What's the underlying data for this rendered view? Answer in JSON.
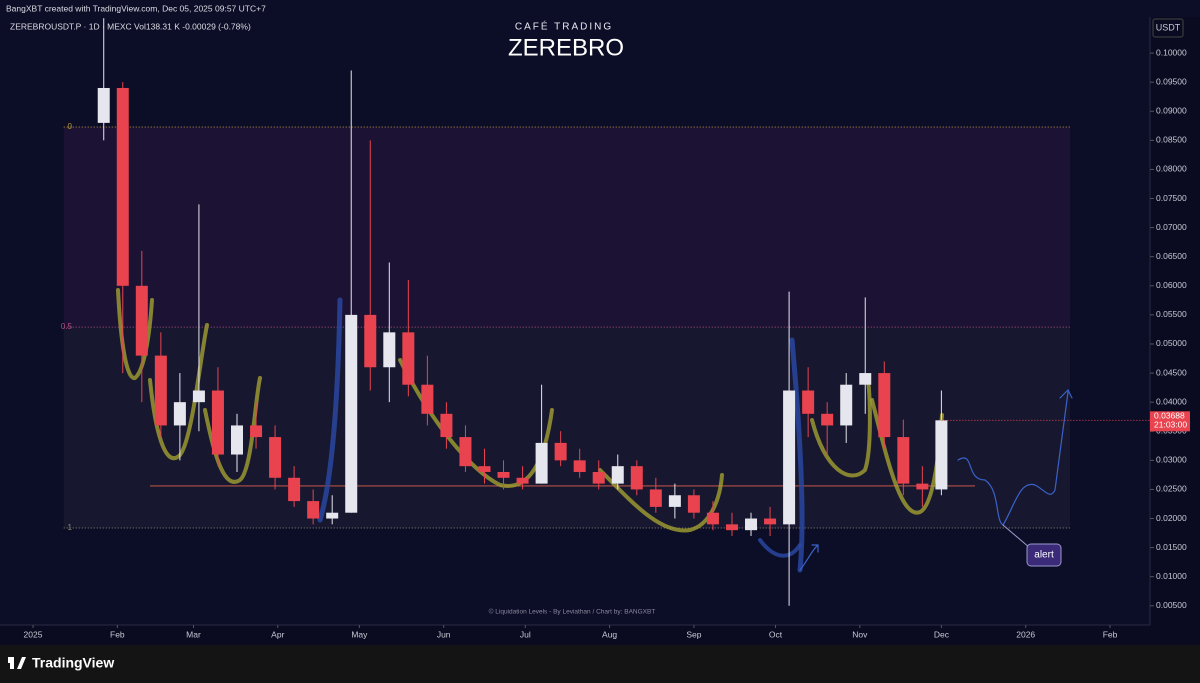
{
  "header": "BangXBT created with TradingView.com, Dec 05, 2025 09:57 UTC+7",
  "brand": "TradingView",
  "chart_data": {
    "type": "candlestick",
    "symbol_line": "ZEREBROUSDT.P · 1D · MEXC  Vol138.31 K  -0.00029 (-0.78%)",
    "subtitle": "CAFÉ TRADING",
    "title": "ZEREBRO",
    "currency": "USDT",
    "footer": "© Liquidation Levels - By Leviathan / Chart by: BANGXBT",
    "annotation": "alert",
    "up_color": "#e6e6ee",
    "down_color": "#e8434e",
    "x": [
      26,
      33,
      40,
      47,
      54,
      61,
      68,
      75,
      82,
      89,
      96,
      103,
      110,
      117,
      124,
      131,
      138,
      145,
      152,
      159,
      166,
      173,
      180,
      187,
      194,
      201,
      208,
      215,
      222,
      229,
      236,
      243,
      250,
      257,
      264,
      271,
      278,
      285,
      292,
      299,
      306,
      313,
      320,
      327,
      334
    ],
    "open": [
      0.088,
      0.094,
      0.06,
      0.048,
      0.036,
      0.04,
      0.042,
      0.031,
      0.036,
      0.034,
      0.027,
      0.023,
      0.02,
      0.021,
      0.055,
      0.046,
      0.052,
      0.043,
      0.038,
      0.034,
      0.029,
      0.028,
      0.027,
      0.026,
      0.033,
      0.03,
      0.028,
      0.026,
      0.029,
      0.025,
      0.022,
      0.024,
      0.021,
      0.019,
      0.018,
      0.02,
      0.019,
      0.042,
      0.038,
      0.036,
      0.043,
      0.045,
      0.034,
      0.026,
      0.025
    ],
    "high": [
      0.106,
      0.095,
      0.066,
      0.052,
      0.045,
      0.074,
      0.046,
      0.038,
      0.04,
      0.036,
      0.029,
      0.025,
      0.024,
      0.097,
      0.085,
      0.064,
      0.061,
      0.048,
      0.04,
      0.036,
      0.032,
      0.03,
      0.029,
      0.043,
      0.035,
      0.032,
      0.03,
      0.031,
      0.03,
      0.027,
      0.026,
      0.025,
      0.023,
      0.021,
      0.021,
      0.022,
      0.059,
      0.046,
      0.04,
      0.045,
      0.058,
      0.047,
      0.037,
      0.029,
      0.042
    ],
    "low": [
      0.085,
      0.045,
      0.04,
      0.034,
      0.03,
      0.035,
      0.029,
      0.028,
      0.032,
      0.025,
      0.022,
      0.019,
      0.019,
      0.021,
      0.042,
      0.04,
      0.041,
      0.036,
      0.032,
      0.028,
      0.026,
      0.025,
      0.025,
      0.026,
      0.029,
      0.027,
      0.025,
      0.025,
      0.024,
      0.021,
      0.02,
      0.02,
      0.018,
      0.017,
      0.017,
      0.017,
      0.005,
      0.034,
      0.031,
      0.033,
      0.038,
      0.032,
      0.024,
      0.022,
      0.024
    ],
    "close": [
      0.094,
      0.06,
      0.048,
      0.036,
      0.04,
      0.042,
      0.031,
      0.036,
      0.034,
      0.027,
      0.023,
      0.02,
      0.021,
      0.055,
      0.046,
      0.052,
      0.043,
      0.038,
      0.034,
      0.029,
      0.028,
      0.027,
      0.026,
      0.033,
      0.03,
      0.028,
      0.026,
      0.029,
      0.025,
      0.022,
      0.024,
      0.021,
      0.019,
      0.018,
      0.02,
      0.019,
      0.042,
      0.038,
      0.036,
      0.043,
      0.045,
      0.034,
      0.026,
      0.025,
      0.03688
    ],
    "last_price": 0.03688,
    "countdown": "21:03:00",
    "levels": [
      {
        "label": "0",
        "price": 0.0873
      },
      {
        "label": "0.5",
        "price": 0.0529
      },
      {
        "label": "1",
        "price": 0.01838
      }
    ],
    "hline": {
      "price": 0.0256,
      "color": "#e0604a"
    },
    "xlim": [
      -9.2,
      410.7
    ],
    "xticks": [
      {
        "value": 0,
        "label": "2025"
      },
      {
        "value": 31,
        "label": "Feb"
      },
      {
        "value": 59,
        "label": "Mar"
      },
      {
        "value": 90,
        "label": "Apr"
      },
      {
        "value": 120,
        "label": "May"
      },
      {
        "value": 151,
        "label": "Jun"
      },
      {
        "value": 181,
        "label": "Jul"
      },
      {
        "value": 212,
        "label": "Aug"
      },
      {
        "value": 243,
        "label": "Sep"
      },
      {
        "value": 273,
        "label": "Oct"
      },
      {
        "value": 304,
        "label": "Nov"
      },
      {
        "value": 334,
        "label": "Dec"
      },
      {
        "value": 365,
        "label": "2026"
      },
      {
        "value": 396,
        "label": "Feb"
      }
    ],
    "ylim": [
      0.0017,
      0.1062
    ],
    "yticks": [
      {
        "value": 0.005,
        "label": "0.00500"
      },
      {
        "value": 0.01,
        "label": "0.01000"
      },
      {
        "value": 0.015,
        "label": "0.01500"
      },
      {
        "value": 0.02,
        "label": "0.02000"
      },
      {
        "value": 0.025,
        "label": "0.02500"
      },
      {
        "value": 0.03,
        "label": "0.03000"
      },
      {
        "value": 0.035,
        "label": "0.03500"
      },
      {
        "value": 0.04,
        "label": "0.04000"
      },
      {
        "value": 0.045,
        "label": "0.04500"
      },
      {
        "value": 0.05,
        "label": "0.05000"
      },
      {
        "value": 0.055,
        "label": "0.05500"
      },
      {
        "value": 0.06,
        "label": "0.06000"
      },
      {
        "value": 0.065,
        "label": "0.06500"
      },
      {
        "value": 0.07,
        "label": "0.07000"
      },
      {
        "value": 0.075,
        "label": "0.07500"
      },
      {
        "value": 0.08,
        "label": "0.08000"
      },
      {
        "value": 0.085,
        "label": "0.08500"
      },
      {
        "value": 0.09,
        "label": "0.09000"
      },
      {
        "value": 0.095,
        "label": "0.09500"
      },
      {
        "value": 0.1,
        "label": "0.10000"
      }
    ]
  }
}
